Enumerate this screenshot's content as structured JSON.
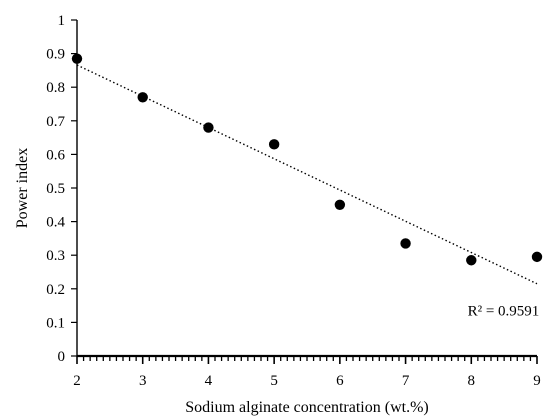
{
  "chart_data": {
    "type": "scatter",
    "title": "",
    "xlabel": "Sodium alginate concentration (wt.%)",
    "ylabel": "Power index",
    "xlim": [
      2,
      9
    ],
    "ylim": [
      0,
      1
    ],
    "x_ticks": [
      "2",
      "3",
      "4",
      "5",
      "6",
      "7",
      "8",
      "9"
    ],
    "y_ticks": [
      "0",
      "0.1",
      "0.2",
      "0.3",
      "0.4",
      "0.5",
      "0.6",
      "0.7",
      "0.8",
      "0.9",
      "1"
    ],
    "grid": false,
    "legend": "none",
    "series": [
      {
        "x": [
          2,
          3,
          4,
          5,
          6,
          7,
          8,
          9
        ],
        "y": [
          0.885,
          0.77,
          0.68,
          0.63,
          0.45,
          0.335,
          0.285,
          0.295
        ],
        "color": "#000000"
      }
    ],
    "trendline": {
      "type": "linear",
      "style": "dotted",
      "color": "#000000",
      "x": [
        2,
        9
      ],
      "y": [
        0.866,
        0.215
      ]
    },
    "annotations": [
      {
        "text": "R² = 0.9591",
        "x": 8.4,
        "y": 0.135
      }
    ]
  }
}
